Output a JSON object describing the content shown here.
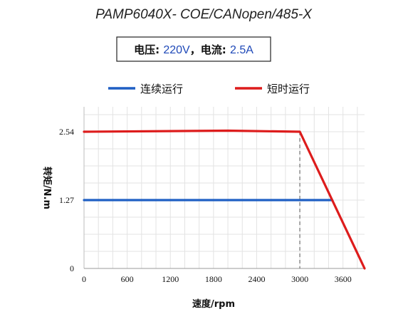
{
  "title": "PAMP6040X- COE/CANopen/485-X",
  "spec": {
    "voltage_label": "电压: ",
    "voltage_value": "220V",
    "separator": "，",
    "current_label": "电流: ",
    "current_value": "2.5A",
    "value_color": "#1f49b8"
  },
  "chart_data": {
    "type": "line",
    "xlabel": "速度/rpm",
    "ylabel": "转矩/N.m",
    "xlim": [
      0,
      3900
    ],
    "ylim": [
      0,
      2.54
    ],
    "x_ticks": [
      "0",
      "600",
      "1200",
      "1800",
      "2400",
      "3000",
      "3600"
    ],
    "y_ticks": [
      "0",
      "1.27",
      "2.54"
    ],
    "grid": true,
    "legend_position": "top",
    "series": [
      {
        "name": "连续运行",
        "color": "#1f5fc4",
        "x": [
          0,
          3450
        ],
        "y": [
          1.27,
          1.27
        ]
      },
      {
        "name": "短时运行",
        "color": "#dd1c1c",
        "x": [
          0,
          2000,
          3000,
          3900
        ],
        "y": [
          2.54,
          2.56,
          2.54,
          0
        ]
      }
    ],
    "annotations": [
      {
        "type": "vline",
        "x": 3000,
        "y_from": 0,
        "y_to": 2.54,
        "style": "dashed",
        "color": "#8c8c8c"
      }
    ]
  }
}
